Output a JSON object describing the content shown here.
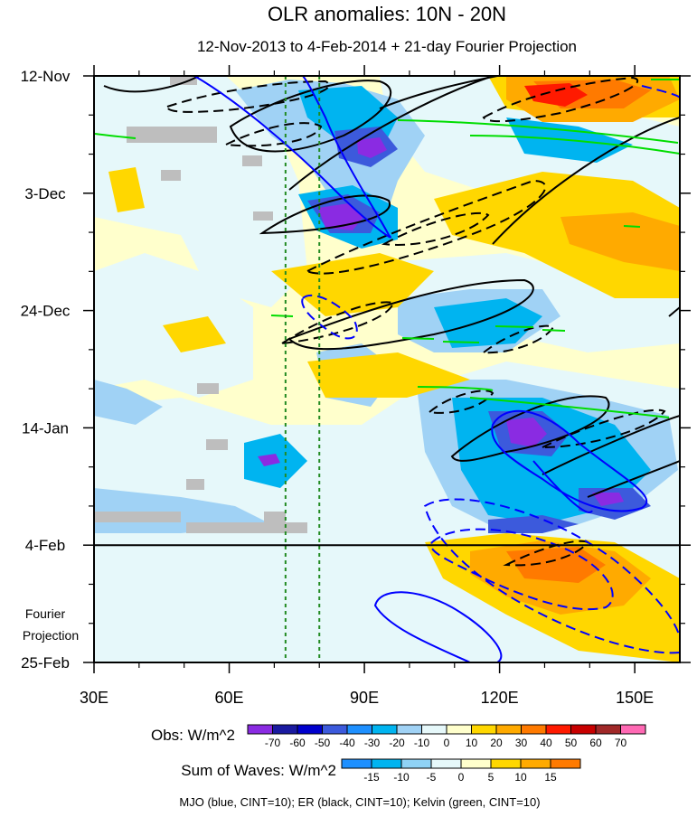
{
  "chart_data": {
    "type": "heatmap",
    "title": "OLR anomalies: 10N - 20N",
    "subtitle": "12-Nov-2013 to 4-Feb-2014 + 21-day Fourier Projection",
    "xlabel": "",
    "ylabel": "",
    "x_ticks": [
      {
        "value": 30,
        "label": "30E"
      },
      {
        "value": 60,
        "label": "60E"
      },
      {
        "value": 90,
        "label": "90E"
      },
      {
        "value": 120,
        "label": "120E"
      },
      {
        "value": 150,
        "label": "150E"
      }
    ],
    "xlim": [
      30,
      160
    ],
    "y_ticks": [
      {
        "day": 0,
        "label": "12-Nov"
      },
      {
        "day": 21,
        "label": "3-Dec"
      },
      {
        "day": 42,
        "label": "24-Dec"
      },
      {
        "day": 63,
        "label": "14-Jan"
      },
      {
        "day": 84,
        "label": "4-Feb"
      },
      {
        "day": 105,
        "label": "25-Feb"
      }
    ],
    "ylim_days": [
      0,
      105
    ],
    "forecast_start_day": 84,
    "forecast_label_lines": [
      "Fourier",
      "Projection"
    ],
    "reference_lines_lon": [
      72.5,
      80
    ],
    "obs_colorbar": {
      "label": "Obs: W/m^2",
      "levels": [
        -70,
        -60,
        -50,
        -40,
        -30,
        -20,
        -10,
        0,
        10,
        20,
        30,
        40,
        50,
        60,
        70
      ],
      "colors": [
        "#8a2be2",
        "#1a1aa0",
        "#0000cd",
        "#3c5adc",
        "#1e90ff",
        "#00b4f0",
        "#a0d2f5",
        "#e6f8fa",
        "#ffffcc",
        "#ffd700",
        "#ffaa00",
        "#ff7a00",
        "#ff1a00",
        "#c80000",
        "#a02828",
        "#ff69b4"
      ]
    },
    "waves_colorbar": {
      "label": "Sum of Waves: W/m^2",
      "levels": [
        -15,
        -10,
        -5,
        0,
        5,
        10,
        15
      ],
      "colors": [
        "#1e90ff",
        "#00b4f0",
        "#8fd2f5",
        "#e6f8fa",
        "#ffffcc",
        "#ffd700",
        "#ffaa00",
        "#ff7a00"
      ]
    },
    "contour_note": "MJO (blue, CINT=10); ER (black, CINT=10); Kelvin (green, CINT=10)",
    "series": [
      {
        "name": "MJO",
        "color": "#0000ff"
      },
      {
        "name": "ER",
        "color": "#000000"
      },
      {
        "name": "Kelvin",
        "color": "#00dd00"
      }
    ]
  }
}
